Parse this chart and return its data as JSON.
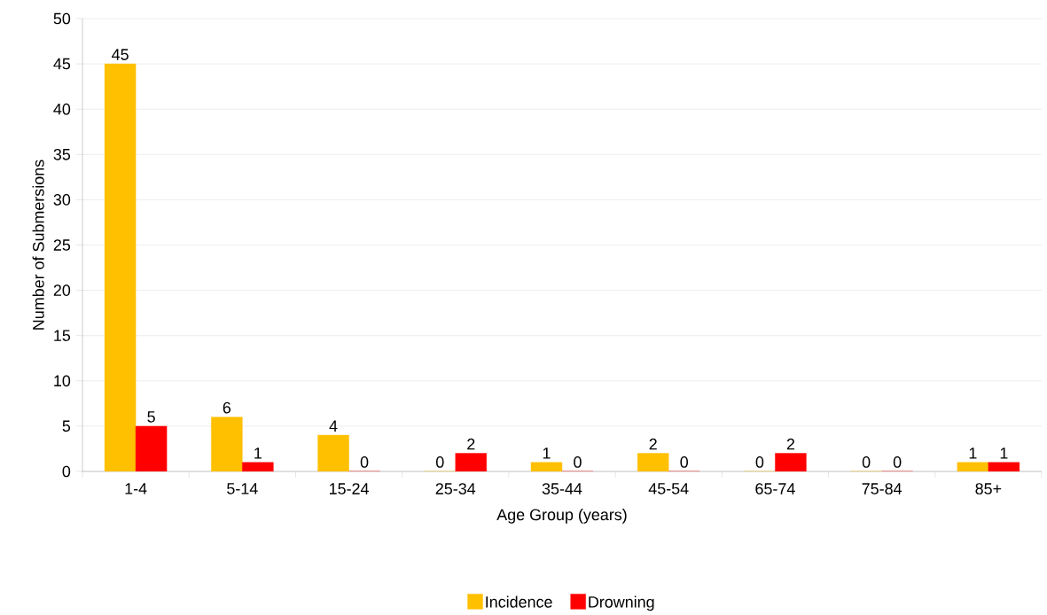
{
  "chart_data": {
    "type": "bar",
    "xlabel": "Age Group (years)",
    "ylabel": "Number of Submersions",
    "categories": [
      "1-4",
      "5-14",
      "15-24",
      "25-34",
      "35-44",
      "45-54",
      "65-74",
      "75-84",
      "85+"
    ],
    "series": [
      {
        "name": "Incidence",
        "color": "#ffc000",
        "values": [
          45,
          6,
          4,
          0,
          1,
          2,
          0,
          0,
          1
        ]
      },
      {
        "name": "Drowning",
        "color": "#ff0000",
        "values": [
          5,
          1,
          0,
          2,
          0,
          0,
          2,
          0,
          1
        ]
      }
    ],
    "ylim": [
      0,
      50
    ],
    "yticks": [
      0,
      5,
      10,
      15,
      20,
      25,
      30,
      35,
      40,
      45,
      50
    ],
    "grid": "y",
    "legend": "bottom",
    "data_labels": true
  }
}
